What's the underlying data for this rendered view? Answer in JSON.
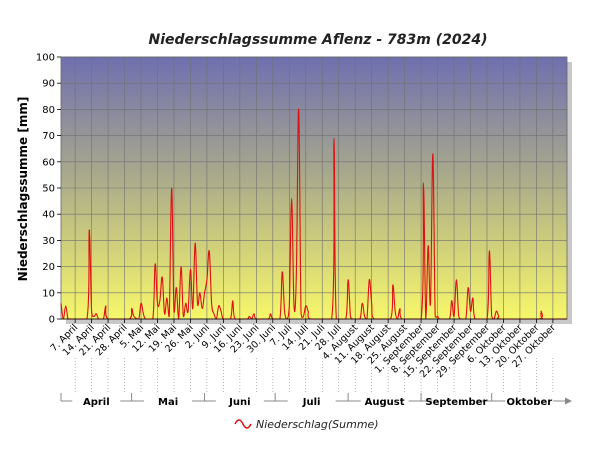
{
  "chart_data": {
    "type": "line",
    "title": "Niederschlagssumme Aflenz - 783m (2024)",
    "ylabel": "Niederschlagssumme [mm]",
    "ylim": [
      0,
      100
    ],
    "yticks": [
      0,
      10,
      20,
      30,
      40,
      50,
      60,
      70,
      80,
      90,
      100
    ],
    "xlim": [
      "2024-04-01",
      "2024-11-02"
    ],
    "grid": true,
    "legend_position": "bottom",
    "colors": {
      "series": "#dd1111",
      "plot_top": "#6f6fb0",
      "plot_bottom": "#f7f76a"
    },
    "x_ticks": [
      "7. April",
      "14. April",
      "21. April",
      "28. April",
      "5. Mai",
      "12. Mai",
      "19. Mai",
      "26. Mai",
      "2. Juni",
      "9. Juni",
      "16. Juni",
      "23. Juni",
      "30. Juni",
      "7. Juli",
      "14. Juli",
      "21. Juli",
      "28. Juli",
      "4. August",
      "11. August",
      "18. August",
      "25. August",
      "1. September",
      "8. September",
      "15. September",
      "22. September",
      "29. September",
      "6. Oktober",
      "13. Oktober",
      "20. Oktober",
      "27. Oktober"
    ],
    "x_tick_dates": [
      "2024-04-07",
      "2024-04-14",
      "2024-04-21",
      "2024-04-28",
      "2024-05-05",
      "2024-05-12",
      "2024-05-19",
      "2024-05-26",
      "2024-06-02",
      "2024-06-09",
      "2024-06-16",
      "2024-06-23",
      "2024-06-30",
      "2024-07-07",
      "2024-07-14",
      "2024-07-21",
      "2024-07-28",
      "2024-08-04",
      "2024-08-11",
      "2024-08-18",
      "2024-08-25",
      "2024-09-01",
      "2024-09-08",
      "2024-09-15",
      "2024-09-22",
      "2024-09-29",
      "2024-10-06",
      "2024-10-13",
      "2024-10-20",
      "2024-10-27"
    ],
    "months": [
      {
        "label": "April",
        "start": "2024-04-01"
      },
      {
        "label": "Mai",
        "start": "2024-05-01"
      },
      {
        "label": "Juni",
        "start": "2024-06-01"
      },
      {
        "label": "Juli",
        "start": "2024-07-01"
      },
      {
        "label": "August",
        "start": "2024-08-01"
      },
      {
        "label": "September",
        "start": "2024-09-01"
      },
      {
        "label": "Oktober",
        "start": "2024-10-01"
      }
    ],
    "series": [
      {
        "name": "Niederschlag(Summe)",
        "points": [
          [
            "2024-04-01",
            6
          ],
          [
            "2024-04-02",
            0
          ],
          [
            "2024-04-03",
            5
          ],
          [
            "2024-04-04",
            0
          ],
          [
            "2024-04-05",
            0
          ],
          [
            "2024-04-12",
            0
          ],
          [
            "2024-04-13",
            34
          ],
          [
            "2024-04-14",
            3
          ],
          [
            "2024-04-15",
            1
          ],
          [
            "2024-04-16",
            2
          ],
          [
            "2024-04-17",
            0
          ],
          [
            "2024-04-19",
            0
          ],
          [
            "2024-04-20",
            5
          ],
          [
            "2024-04-21",
            0
          ],
          [
            "2024-04-30",
            0
          ],
          [
            "2024-05-01",
            4
          ],
          [
            "2024-05-02",
            1
          ],
          [
            "2024-05-04",
            0
          ],
          [
            "2024-05-05",
            6
          ],
          [
            "2024-05-06",
            2
          ],
          [
            "2024-05-07",
            0
          ],
          [
            "2024-05-10",
            0
          ],
          [
            "2024-05-11",
            21
          ],
          [
            "2024-05-12",
            6
          ],
          [
            "2024-05-13",
            7
          ],
          [
            "2024-05-14",
            16
          ],
          [
            "2024-05-15",
            2
          ],
          [
            "2024-05-16",
            8
          ],
          [
            "2024-05-17",
            1
          ],
          [
            "2024-05-18",
            50
          ],
          [
            "2024-05-19",
            3
          ],
          [
            "2024-05-20",
            12
          ],
          [
            "2024-05-21",
            0
          ],
          [
            "2024-05-22",
            20
          ],
          [
            "2024-05-23",
            1
          ],
          [
            "2024-05-24",
            6
          ],
          [
            "2024-05-25",
            3
          ],
          [
            "2024-05-26",
            19
          ],
          [
            "2024-05-27",
            4
          ],
          [
            "2024-05-28",
            29
          ],
          [
            "2024-05-29",
            6
          ],
          [
            "2024-05-30",
            10
          ],
          [
            "2024-05-31",
            4
          ],
          [
            "2024-06-01",
            10
          ],
          [
            "2024-06-02",
            15
          ],
          [
            "2024-06-03",
            26
          ],
          [
            "2024-06-04",
            6
          ],
          [
            "2024-06-05",
            2
          ],
          [
            "2024-06-06",
            0
          ],
          [
            "2024-06-07",
            5
          ],
          [
            "2024-06-08",
            3
          ],
          [
            "2024-06-09",
            0
          ],
          [
            "2024-06-12",
            0
          ],
          [
            "2024-06-13",
            7
          ],
          [
            "2024-06-14",
            0
          ],
          [
            "2024-06-19",
            0
          ],
          [
            "2024-06-20",
            1
          ],
          [
            "2024-06-21",
            0
          ],
          [
            "2024-06-22",
            2
          ],
          [
            "2024-06-23",
            0
          ],
          [
            "2024-06-28",
            0
          ],
          [
            "2024-06-29",
            2
          ],
          [
            "2024-06-30",
            0
          ],
          [
            "2024-07-03",
            0
          ],
          [
            "2024-07-04",
            18
          ],
          [
            "2024-07-05",
            3
          ],
          [
            "2024-07-06",
            0
          ],
          [
            "2024-07-07",
            5
          ],
          [
            "2024-07-08",
            46
          ],
          [
            "2024-07-09",
            5
          ],
          [
            "2024-07-10",
            17
          ],
          [
            "2024-07-11",
            80
          ],
          [
            "2024-07-12",
            2
          ],
          [
            "2024-07-13",
            1
          ],
          [
            "2024-07-14",
            5
          ],
          [
            "2024-07-15",
            3
          ],
          [
            "2024-07-16",
            0
          ],
          [
            "2024-07-25",
            0
          ],
          [
            "2024-07-26",
            69
          ],
          [
            "2024-07-27",
            0
          ],
          [
            "2024-07-31",
            0
          ],
          [
            "2024-08-01",
            15
          ],
          [
            "2024-08-02",
            1
          ],
          [
            "2024-08-03",
            0
          ],
          [
            "2024-08-06",
            0
          ],
          [
            "2024-08-07",
            6
          ],
          [
            "2024-08-08",
            1
          ],
          [
            "2024-08-09",
            0
          ],
          [
            "2024-08-10",
            15
          ],
          [
            "2024-08-11",
            6
          ],
          [
            "2024-08-12",
            0
          ],
          [
            "2024-08-19",
            0
          ],
          [
            "2024-08-20",
            13
          ],
          [
            "2024-08-21",
            3
          ],
          [
            "2024-08-22",
            0
          ],
          [
            "2024-08-23",
            4
          ],
          [
            "2024-08-24",
            0
          ],
          [
            "2024-09-01",
            0
          ],
          [
            "2024-09-02",
            52
          ],
          [
            "2024-09-03",
            0
          ],
          [
            "2024-09-04",
            28
          ],
          [
            "2024-09-05",
            6
          ],
          [
            "2024-09-06",
            63
          ],
          [
            "2024-09-07",
            1
          ],
          [
            "2024-09-08",
            1
          ],
          [
            "2024-09-09",
            0
          ],
          [
            "2024-09-13",
            0
          ],
          [
            "2024-09-14",
            7
          ],
          [
            "2024-09-15",
            1
          ],
          [
            "2024-09-16",
            15
          ],
          [
            "2024-09-17",
            1
          ],
          [
            "2024-09-18",
            0
          ],
          [
            "2024-09-20",
            0
          ],
          [
            "2024-09-21",
            12
          ],
          [
            "2024-09-22",
            3
          ],
          [
            "2024-09-23",
            8
          ],
          [
            "2024-09-24",
            0
          ],
          [
            "2024-09-29",
            0
          ],
          [
            "2024-09-30",
            26
          ],
          [
            "2024-10-01",
            1
          ],
          [
            "2024-10-02",
            0
          ],
          [
            "2024-10-03",
            3
          ],
          [
            "2024-10-04",
            1
          ],
          [
            "2024-10-05",
            0
          ],
          [
            "2024-10-21",
            0
          ],
          [
            "2024-10-22",
            3
          ],
          [
            "2024-10-23",
            0
          ],
          [
            "2024-11-02",
            0
          ]
        ]
      }
    ]
  }
}
